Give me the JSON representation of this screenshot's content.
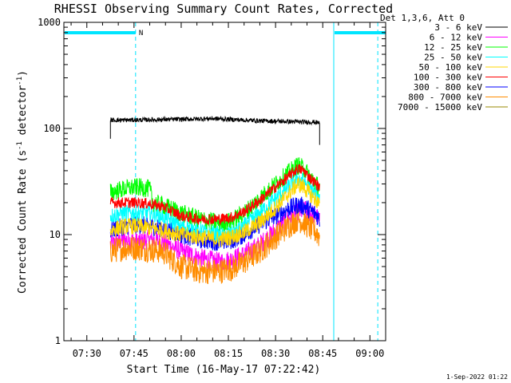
{
  "chart_data": {
    "type": "line",
    "title": "RHESSI Observing Summary Count Rates, Corrected",
    "xlabel": "Start Time (16-May-17 07:22:42)",
    "ylabel_main": "Corrected Count Rate (s",
    "ylabel_exp1": "-1",
    "ylabel_mid": " detector",
    "ylabel_exp2": "-1",
    "ylabel_close": ")",
    "yscale": "log",
    "ylim": [
      1,
      1000
    ],
    "xlim_minutes": [
      442.7,
      545
    ],
    "x_ticks": [
      {
        "m": 450,
        "label": "07:30"
      },
      {
        "m": 465,
        "label": "07:45"
      },
      {
        "m": 480,
        "label": "08:00"
      },
      {
        "m": 495,
        "label": "08:15"
      },
      {
        "m": 510,
        "label": "08:30"
      },
      {
        "m": 525,
        "label": "08:45"
      },
      {
        "m": 540,
        "label": "09:00"
      }
    ],
    "y_ticks": [
      {
        "v": 1,
        "label": "1"
      },
      {
        "v": 10,
        "label": "10"
      },
      {
        "v": 100,
        "label": "100"
      },
      {
        "v": 1000,
        "label": "1000"
      }
    ],
    "legend_header": "Det 1,3,6, Att 0",
    "series": [
      {
        "name": "3 - 6 keV",
        "color": "#000000",
        "x": [
          457.5,
          465,
          470,
          480,
          490,
          495,
          500,
          505,
          510,
          515,
          518,
          522,
          524
        ],
        "y": [
          120,
          120,
          121,
          122,
          124,
          122,
          120,
          118,
          117,
          116,
          115,
          115,
          113
        ]
      },
      {
        "name": "6 - 12 keV",
        "color": "#ff00ff",
        "x": [
          457.5,
          462,
          466,
          470,
          474,
          480,
          486,
          492,
          496,
          500,
          505,
          510,
          514,
          517,
          519,
          521,
          523,
          524
        ],
        "y": [
          8.0,
          9.0,
          8.5,
          9.0,
          8.5,
          7.0,
          6.0,
          5.5,
          5.8,
          6.5,
          8.0,
          11.0,
          14.0,
          16.0,
          17.0,
          16.0,
          15.0,
          13.0
        ]
      },
      {
        "name": "12 - 25 keV",
        "color": "#00ff00",
        "x": [
          457.5,
          462,
          466,
          470,
          471,
          474,
          480,
          486,
          492,
          496,
          500,
          505,
          510,
          514,
          517,
          519,
          521,
          523,
          524
        ],
        "y": [
          25,
          27,
          28,
          27,
          20,
          19,
          16,
          14,
          13,
          13.5,
          16,
          22,
          30,
          38,
          45,
          42,
          35,
          30,
          28
        ]
      },
      {
        "name": "25 - 50 keV",
        "color": "#00ffff",
        "x": [
          457.5,
          462,
          466,
          470,
          474,
          480,
          486,
          492,
          496,
          500,
          505,
          510,
          514,
          517,
          519,
          521,
          523,
          524
        ],
        "y": [
          15,
          16,
          16,
          16,
          15,
          12,
          11,
          10,
          10.5,
          12,
          16,
          22,
          28,
          34,
          32,
          27,
          24,
          22
        ]
      },
      {
        "name": "50 - 100 keV",
        "color": "#ffd700",
        "x": [
          457.5,
          462,
          466,
          470,
          474,
          480,
          486,
          492,
          496,
          500,
          505,
          510,
          514,
          517,
          519,
          521,
          523,
          524
        ],
        "y": [
          11,
          12,
          12,
          11.5,
          11,
          10,
          9.5,
          9.0,
          9.5,
          10.5,
          13,
          18,
          24,
          30,
          28,
          24,
          21,
          19
        ]
      },
      {
        "name": "100 - 300 keV",
        "color": "#ff0000",
        "x": [
          457.5,
          462,
          466,
          470,
          474,
          480,
          486,
          492,
          496,
          500,
          505,
          510,
          514,
          517,
          519,
          521,
          523,
          524
        ],
        "y": [
          20,
          20,
          20,
          19.5,
          18.5,
          15,
          14,
          14,
          14.5,
          16.5,
          21,
          28,
          35,
          42,
          40,
          34,
          30,
          28
        ]
      },
      {
        "name": "300 - 800 keV",
        "color": "#0000ff",
        "x": [
          457.5,
          462,
          466,
          470,
          474,
          480,
          486,
          492,
          496,
          500,
          505,
          510,
          514,
          517,
          519,
          521,
          523,
          524
        ],
        "y": [
          11,
          12,
          12.5,
          12,
          11.5,
          10,
          9.0,
          8.5,
          8.8,
          10,
          12.5,
          15,
          17.5,
          19,
          18.5,
          17,
          15.5,
          14
        ]
      },
      {
        "name": "800 - 7000 keV",
        "color": "#ff8c00",
        "x": [
          457.5,
          462,
          466,
          470,
          474,
          480,
          486,
          492,
          496,
          500,
          505,
          510,
          514,
          517,
          519,
          521,
          523,
          524
        ],
        "y": [
          7.0,
          7.5,
          7.5,
          7.2,
          7.0,
          5.0,
          4.5,
          4.5,
          4.8,
          5.5,
          7.0,
          9.5,
          12,
          14,
          13,
          11.5,
          10.5,
          9.5
        ]
      },
      {
        "name": "7000 - 15000 keV",
        "color": "#9a8a00",
        "x": [],
        "y": []
      }
    ],
    "annotations": {
      "night_flag_segments": [
        [
          442.7,
          465.5
        ],
        [
          528.5,
          545
        ]
      ],
      "night_flag_label": "N",
      "solid_markers": [
        442.7,
        528.5
      ],
      "dashed_markers": [
        465.5,
        542.5
      ]
    },
    "timestamp": "1-Sep-2022 01:22"
  }
}
